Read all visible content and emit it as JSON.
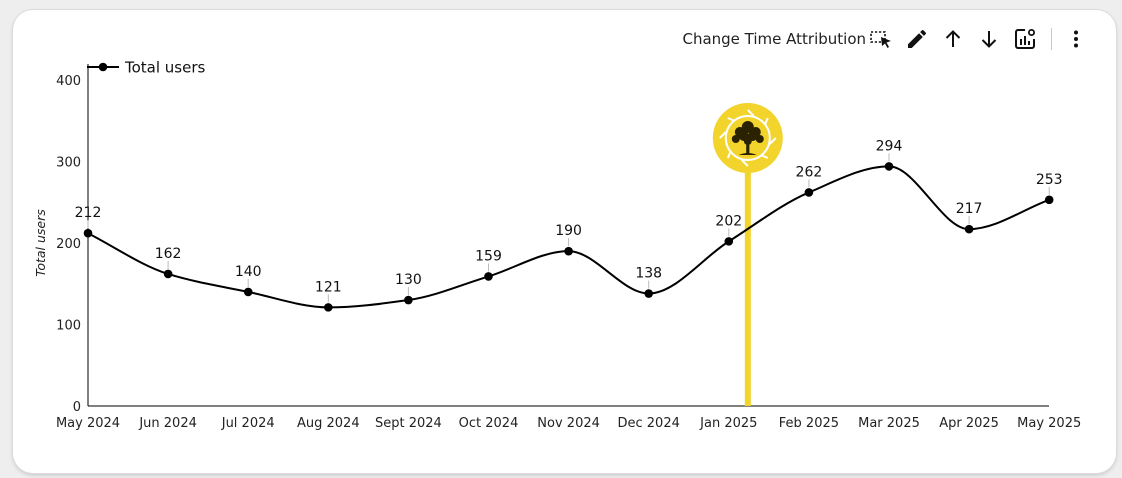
{
  "toolbar": {
    "change_time_attribution_label": "Change Time Attribution",
    "icons": [
      "select-area-icon",
      "edit-icon",
      "arrow-up-icon",
      "arrow-down-icon",
      "chart-settings-icon",
      "more-vert-icon"
    ]
  },
  "chart_data": {
    "type": "line",
    "categories": [
      "May 2024",
      "Jun 2024",
      "Jul 2024",
      "Aug 2024",
      "Sept 2024",
      "Oct 2024",
      "Nov 2024",
      "Dec 2024",
      "Jan 2025",
      "Feb 2025",
      "Mar 2025",
      "Apr 2025",
      "May 2025"
    ],
    "series": [
      {
        "name": "Total users",
        "values": [
          212,
          162,
          140,
          121,
          130,
          159,
          190,
          138,
          202,
          262,
          294,
          217,
          253
        ],
        "color": "#000000"
      }
    ],
    "ylabel": "Total users",
    "ylim": [
      0,
      400
    ],
    "yticks": [
      "0",
      "100",
      "200",
      "300",
      "400"
    ],
    "legend_position": "top-left",
    "grid": false,
    "smooth": true,
    "annotation": {
      "category": "Jan 2025",
      "color": "#f2d42c",
      "icon": "tree-logo-icon"
    }
  }
}
